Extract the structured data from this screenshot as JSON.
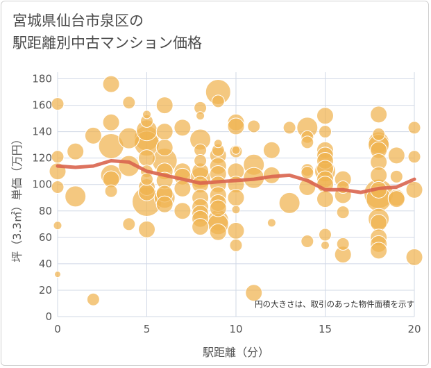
{
  "colors": {
    "bubble_fill": "#f0b34f",
    "bubble_stroke": "#ffffff",
    "line": "#d9644e",
    "grid": "#d0d8e6",
    "text": "#555555"
  },
  "chart_data": {
    "type": "scatter",
    "title": [
      "宮城県仙台市泉区の",
      "駅距離別中古マンション価格"
    ],
    "xlabel": "駅距離（分）",
    "ylabel": "坪（3.3㎡）単価（万円）",
    "xlim": [
      0,
      20
    ],
    "ylim": [
      0,
      185
    ],
    "xticks": [
      "0",
      "5",
      "10",
      "15",
      "20"
    ],
    "yticks": [
      "0",
      "20",
      "40",
      "60",
      "80",
      "100",
      "120",
      "140",
      "160",
      "180"
    ],
    "grid": true,
    "note": "円の大きさは、取引のあった物件面積を示す",
    "bubbles": [
      {
        "x": 0,
        "y": 161,
        "s": 2
      },
      {
        "x": 0,
        "y": 121,
        "s": 2
      },
      {
        "x": 0,
        "y": 110,
        "s": 3
      },
      {
        "x": 0,
        "y": 98,
        "s": 2
      },
      {
        "x": 0,
        "y": 69,
        "s": 1
      },
      {
        "x": 0,
        "y": 32,
        "s": 0.5
      },
      {
        "x": 1,
        "y": 125,
        "s": 3
      },
      {
        "x": 1,
        "y": 91,
        "s": 4
      },
      {
        "x": 2,
        "y": 137,
        "s": 3
      },
      {
        "x": 2,
        "y": 13,
        "s": 2
      },
      {
        "x": 3,
        "y": 176,
        "s": 3
      },
      {
        "x": 3,
        "y": 147,
        "s": 3
      },
      {
        "x": 3,
        "y": 129,
        "s": 5
      },
      {
        "x": 3,
        "y": 107,
        "s": 4
      },
      {
        "x": 3,
        "y": 104,
        "s": 3
      },
      {
        "x": 3,
        "y": 95,
        "s": 2
      },
      {
        "x": 4,
        "y": 162,
        "s": 2
      },
      {
        "x": 4,
        "y": 135,
        "s": 4
      },
      {
        "x": 4,
        "y": 114,
        "s": 4
      },
      {
        "x": 4,
        "y": 70,
        "s": 2
      },
      {
        "x": 5,
        "y": 153,
        "s": 1
      },
      {
        "x": 5,
        "y": 148,
        "s": 2
      },
      {
        "x": 5,
        "y": 141,
        "s": 4
      },
      {
        "x": 5,
        "y": 135,
        "s": 5
      },
      {
        "x": 5,
        "y": 131,
        "s": 5
      },
      {
        "x": 5,
        "y": 120,
        "s": 3
      },
      {
        "x": 5,
        "y": 110,
        "s": 2
      },
      {
        "x": 5,
        "y": 104,
        "s": 2
      },
      {
        "x": 5,
        "y": 98,
        "s": 3
      },
      {
        "x": 5,
        "y": 94,
        "s": 3
      },
      {
        "x": 5,
        "y": 87,
        "s": 6
      },
      {
        "x": 5,
        "y": 66,
        "s": 3
      },
      {
        "x": 6,
        "y": 160,
        "s": 3
      },
      {
        "x": 6,
        "y": 140,
        "s": 3
      },
      {
        "x": 6,
        "y": 128,
        "s": 3
      },
      {
        "x": 6,
        "y": 118,
        "s": 5
      },
      {
        "x": 6,
        "y": 110,
        "s": 3
      },
      {
        "x": 6,
        "y": 103,
        "s": 3
      },
      {
        "x": 6,
        "y": 93,
        "s": 3
      },
      {
        "x": 6,
        "y": 90,
        "s": 4
      },
      {
        "x": 6,
        "y": 85,
        "s": 3
      },
      {
        "x": 7,
        "y": 143,
        "s": 3
      },
      {
        "x": 7,
        "y": 110,
        "s": 3
      },
      {
        "x": 7,
        "y": 106,
        "s": 3
      },
      {
        "x": 7,
        "y": 97,
        "s": 3
      },
      {
        "x": 7,
        "y": 80,
        "s": 3
      },
      {
        "x": 8,
        "y": 158,
        "s": 2
      },
      {
        "x": 8,
        "y": 152,
        "s": 1
      },
      {
        "x": 8,
        "y": 134,
        "s": 4
      },
      {
        "x": 8,
        "y": 126,
        "s": 2
      },
      {
        "x": 8,
        "y": 118,
        "s": 2
      },
      {
        "x": 8,
        "y": 110,
        "s": 3
      },
      {
        "x": 8,
        "y": 105,
        "s": 4
      },
      {
        "x": 8,
        "y": 100,
        "s": 3
      },
      {
        "x": 8,
        "y": 90,
        "s": 3
      },
      {
        "x": 8,
        "y": 83,
        "s": 3
      },
      {
        "x": 8,
        "y": 78,
        "s": 3
      },
      {
        "x": 8,
        "y": 74,
        "s": 3
      },
      {
        "x": 8,
        "y": 68,
        "s": 3
      },
      {
        "x": 9,
        "y": 170,
        "s": 5
      },
      {
        "x": 9,
        "y": 163,
        "s": 2
      },
      {
        "x": 9,
        "y": 131,
        "s": 1
      },
      {
        "x": 9,
        "y": 126,
        "s": 2
      },
      {
        "x": 9,
        "y": 122,
        "s": 3
      },
      {
        "x": 9,
        "y": 114,
        "s": 3
      },
      {
        "x": 9,
        "y": 108,
        "s": 3
      },
      {
        "x": 9,
        "y": 100,
        "s": 3
      },
      {
        "x": 9,
        "y": 92,
        "s": 3
      },
      {
        "x": 9,
        "y": 86,
        "s": 3
      },
      {
        "x": 9,
        "y": 82,
        "s": 3
      },
      {
        "x": 9,
        "y": 73,
        "s": 4
      },
      {
        "x": 9,
        "y": 70,
        "s": 4
      },
      {
        "x": 9,
        "y": 64,
        "s": 3
      },
      {
        "x": 10,
        "y": 147,
        "s": 3
      },
      {
        "x": 10,
        "y": 144,
        "s": 3
      },
      {
        "x": 10,
        "y": 126,
        "s": 1
      },
      {
        "x": 10,
        "y": 125,
        "s": 2
      },
      {
        "x": 10,
        "y": 110,
        "s": 3
      },
      {
        "x": 10,
        "y": 100,
        "s": 3
      },
      {
        "x": 10,
        "y": 90,
        "s": 3
      },
      {
        "x": 10,
        "y": 81,
        "s": 1
      },
      {
        "x": 10,
        "y": 65,
        "s": 3
      },
      {
        "x": 10,
        "y": 54,
        "s": 2
      },
      {
        "x": 11,
        "y": 144,
        "s": 2
      },
      {
        "x": 11,
        "y": 115,
        "s": 4
      },
      {
        "x": 11,
        "y": 105,
        "s": 4
      },
      {
        "x": 11,
        "y": 18,
        "s": 3
      },
      {
        "x": 12,
        "y": 126,
        "s": 3
      },
      {
        "x": 12,
        "y": 107,
        "s": 3
      },
      {
        "x": 12,
        "y": 71,
        "s": 1
      },
      {
        "x": 13,
        "y": 143,
        "s": 2
      },
      {
        "x": 13,
        "y": 86,
        "s": 4
      },
      {
        "x": 14,
        "y": 143,
        "s": 4
      },
      {
        "x": 14,
        "y": 136,
        "s": 2
      },
      {
        "x": 14,
        "y": 132,
        "s": 2
      },
      {
        "x": 14,
        "y": 111,
        "s": 2
      },
      {
        "x": 14,
        "y": 109,
        "s": 2
      },
      {
        "x": 14,
        "y": 98,
        "s": 3
      },
      {
        "x": 14,
        "y": 57,
        "s": 2
      },
      {
        "x": 15,
        "y": 152,
        "s": 3
      },
      {
        "x": 15,
        "y": 140,
        "s": 2
      },
      {
        "x": 15,
        "y": 126,
        "s": 3
      },
      {
        "x": 15,
        "y": 122,
        "s": 3
      },
      {
        "x": 15,
        "y": 118,
        "s": 3
      },
      {
        "x": 15,
        "y": 112,
        "s": 3
      },
      {
        "x": 15,
        "y": 110,
        "s": 4
      },
      {
        "x": 15,
        "y": 104,
        "s": 3
      },
      {
        "x": 15,
        "y": 100,
        "s": 3
      },
      {
        "x": 15,
        "y": 89,
        "s": 3
      },
      {
        "x": 15,
        "y": 62,
        "s": 2
      },
      {
        "x": 15,
        "y": 54,
        "s": 1
      },
      {
        "x": 16,
        "y": 104,
        "s": 3
      },
      {
        "x": 16,
        "y": 98,
        "s": 2
      },
      {
        "x": 16,
        "y": 92,
        "s": 3
      },
      {
        "x": 16,
        "y": 79,
        "s": 2
      },
      {
        "x": 16,
        "y": 55,
        "s": 2
      },
      {
        "x": 16,
        "y": 47,
        "s": 3
      },
      {
        "x": 18,
        "y": 153,
        "s": 3
      },
      {
        "x": 18,
        "y": 138,
        "s": 2
      },
      {
        "x": 18,
        "y": 132,
        "s": 4
      },
      {
        "x": 18,
        "y": 130,
        "s": 4
      },
      {
        "x": 18,
        "y": 126,
        "s": 3
      },
      {
        "x": 18,
        "y": 117,
        "s": 3
      },
      {
        "x": 18,
        "y": 107,
        "s": 3
      },
      {
        "x": 18,
        "y": 96,
        "s": 3
      },
      {
        "x": 18,
        "y": 93,
        "s": 6
      },
      {
        "x": 18,
        "y": 89,
        "s": 5
      },
      {
        "x": 18,
        "y": 74,
        "s": 4
      },
      {
        "x": 18,
        "y": 71,
        "s": 3
      },
      {
        "x": 18,
        "y": 60,
        "s": 3
      },
      {
        "x": 18,
        "y": 55,
        "s": 3
      },
      {
        "x": 18,
        "y": 50,
        "s": 3
      },
      {
        "x": 19,
        "y": 122,
        "s": 3
      },
      {
        "x": 19,
        "y": 106,
        "s": 2
      },
      {
        "x": 19,
        "y": 90,
        "s": 3
      },
      {
        "x": 19,
        "y": 89,
        "s": 3
      },
      {
        "x": 20,
        "y": 143,
        "s": 2
      },
      {
        "x": 20,
        "y": 121,
        "s": 2
      },
      {
        "x": 20,
        "y": 96,
        "s": 3
      },
      {
        "x": 20,
        "y": 45,
        "s": 3
      }
    ],
    "trend": {
      "x": [
        0,
        1,
        2,
        3,
        4,
        5,
        6,
        7,
        8,
        9,
        10,
        11,
        12,
        13,
        14,
        15,
        16,
        17,
        18,
        19,
        20
      ],
      "y": [
        114,
        113,
        114,
        118,
        117,
        110,
        107,
        104,
        101,
        102,
        103,
        104,
        106,
        107,
        103,
        96,
        96,
        94,
        97,
        98,
        104
      ]
    }
  }
}
